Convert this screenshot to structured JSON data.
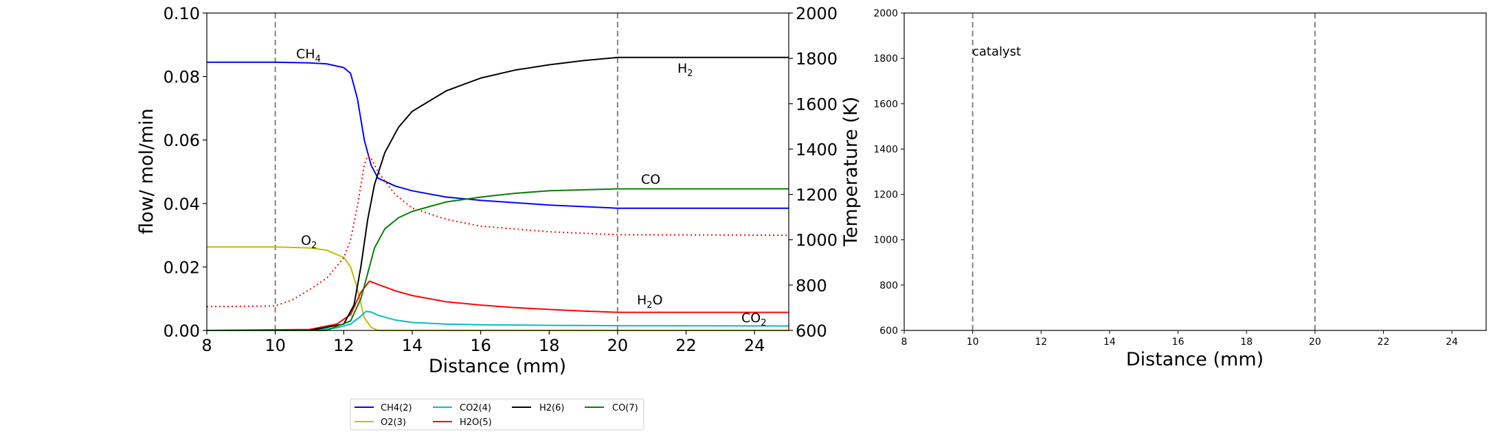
{
  "chart_data": [
    {
      "type": "line",
      "xlabel": "Distance (mm)",
      "ylabel": "flow/ mol/min",
      "y2label": "Temperature (K)",
      "xlim": [
        8,
        25
      ],
      "ylim": [
        0,
        0.1
      ],
      "y2lim": [
        600,
        2000
      ],
      "xticks": [
        "8",
        "10",
        "12",
        "14",
        "16",
        "18",
        "20",
        "22",
        "24"
      ],
      "yticks": [
        "0.00",
        "0.02",
        "0.04",
        "0.06",
        "0.08",
        "0.10"
      ],
      "y2ticks": [
        "600",
        "800",
        "1000",
        "1200",
        "1400",
        "1600",
        "1800",
        "2000"
      ],
      "grid": false,
      "vlines": [
        10,
        20
      ],
      "series": [
        {
          "name": "CH4(2)",
          "label": "CH4",
          "color": "#0000ff",
          "x": [
            8,
            10,
            11,
            11.5,
            12,
            12.2,
            12.4,
            12.6,
            12.8,
            13,
            13.5,
            14,
            15,
            16,
            18,
            20,
            25
          ],
          "y": [
            0.0845,
            0.0845,
            0.0843,
            0.084,
            0.0828,
            0.081,
            0.073,
            0.06,
            0.052,
            0.048,
            0.0455,
            0.044,
            0.042,
            0.041,
            0.0395,
            0.0385,
            0.0385
          ]
        },
        {
          "name": "O2(3)",
          "label": "O2",
          "color": "#bfbf00",
          "x": [
            8,
            10,
            11,
            11.5,
            12,
            12.2,
            12.4,
            12.6,
            12.8,
            13,
            25
          ],
          "y": [
            0.0263,
            0.0263,
            0.026,
            0.0253,
            0.023,
            0.02,
            0.013,
            0.004,
            0.001,
            0.0,
            0.0
          ]
        },
        {
          "name": "CO2(4)",
          "label": "CO2",
          "color": "#00bfbf",
          "x": [
            8,
            11,
            11.8,
            12.2,
            12.5,
            12.65,
            12.8,
            13,
            13.5,
            14,
            15,
            16,
            18,
            20,
            25
          ],
          "y": [
            0.0,
            0.0,
            0.0008,
            0.002,
            0.0045,
            0.006,
            0.0058,
            0.0048,
            0.0033,
            0.0025,
            0.002,
            0.0018,
            0.0016,
            0.0015,
            0.0014
          ]
        },
        {
          "name": "H2O(5)",
          "label": "H2O",
          "color": "#ff0000",
          "x": [
            8,
            11,
            11.8,
            12.2,
            12.5,
            12.75,
            13,
            13.5,
            14,
            15,
            16,
            17,
            18,
            19,
            20,
            25
          ],
          "y": [
            0.0,
            0.0003,
            0.002,
            0.005,
            0.012,
            0.0155,
            0.0145,
            0.0125,
            0.011,
            0.009,
            0.008,
            0.0072,
            0.0066,
            0.0061,
            0.0057,
            0.0057
          ]
        },
        {
          "name": "H2(6)",
          "label": "H2",
          "color": "#000000",
          "x": [
            8,
            11,
            12,
            12.3,
            12.5,
            12.7,
            12.9,
            13.2,
            13.6,
            14,
            15,
            16,
            17,
            18,
            19,
            20,
            25
          ],
          "y": [
            0.0,
            0.0,
            0.002,
            0.008,
            0.02,
            0.035,
            0.046,
            0.056,
            0.064,
            0.069,
            0.0755,
            0.0795,
            0.082,
            0.0837,
            0.085,
            0.086,
            0.086
          ]
        },
        {
          "name": "CO(7)",
          "label": "CO",
          "color": "#008000",
          "x": [
            8,
            11.5,
            12.2,
            12.5,
            12.7,
            12.9,
            13.2,
            13.6,
            14,
            15,
            16,
            17,
            18,
            19,
            20,
            25
          ],
          "y": [
            0.0,
            0.0,
            0.003,
            0.01,
            0.018,
            0.026,
            0.032,
            0.0355,
            0.0375,
            0.0405,
            0.042,
            0.0432,
            0.044,
            0.0443,
            0.0446,
            0.0446
          ]
        },
        {
          "name": "Temperature",
          "color": "#ff0000",
          "dash": true,
          "axis": "right",
          "x": [
            8,
            10,
            10.5,
            11,
            11.5,
            12,
            12.2,
            12.4,
            12.6,
            12.7,
            12.8,
            13,
            13.5,
            14,
            15,
            16,
            18,
            20,
            25
          ],
          "y": [
            705,
            708,
            735,
            780,
            830,
            920,
            1000,
            1150,
            1330,
            1370,
            1360,
            1300,
            1200,
            1140,
            1090,
            1060,
            1035,
            1022,
            1020
          ]
        }
      ],
      "annotations": [
        {
          "text": "CH",
          "sub": "4",
          "color": "#0000ff"
        },
        {
          "text": "O",
          "sub": "2",
          "color": "#bfbf00"
        },
        {
          "text": "H",
          "sub": "2",
          "color": "#000000"
        },
        {
          "text": "CO",
          "sub": "",
          "color": "#008000"
        },
        {
          "text": "H",
          "sub": "2",
          "suffix": "O",
          "color": "#ff0000"
        },
        {
          "text": "CO",
          "sub": "2",
          "color": "#00bfbf"
        }
      ],
      "legend": {
        "placement": "below",
        "entries": [
          "CH4(2)",
          "O2(3)",
          "CO2(4)",
          "H2O(5)",
          "H2(6)",
          "CO(7)"
        ]
      }
    },
    {
      "type": "line",
      "xlabel": "Distance (mm)",
      "ylabel": "",
      "xlim": [
        8,
        25
      ],
      "ylim": [
        600,
        2000
      ],
      "xticks": [
        "8",
        "10",
        "12",
        "14",
        "16",
        "18",
        "20",
        "22",
        "24"
      ],
      "yticks": [
        "600",
        "800",
        "1000",
        "1200",
        "1400",
        "1600",
        "1800",
        "2000"
      ],
      "grid": false,
      "vlines": [
        10,
        20
      ],
      "annotation": "catalyst",
      "series": []
    }
  ]
}
